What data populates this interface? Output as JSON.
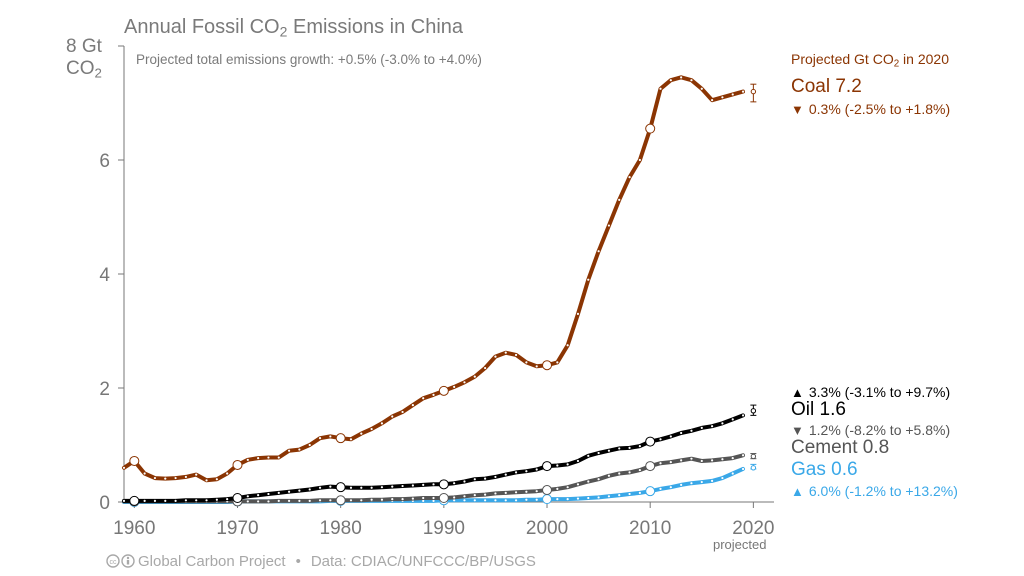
{
  "title": {
    "prefix": "Annual Fossil CO",
    "sub": "2",
    "suffix": " Emissions in China"
  },
  "subtitle": "Projected total emissions growth: +0.5% (-3.0% to +4.0%)",
  "y_unit": {
    "line1": "8 Gt",
    "line2_prefix": "CO",
    "line2_sub": "2"
  },
  "projection_header": {
    "prefix": "Projected Gt CO",
    "sub": "2",
    "suffix": " in 2020"
  },
  "labels": {
    "coal_name": "Coal 7.2",
    "coal_growth": "0.3% (-2.5% to +1.8%)",
    "oil_growth": "3.3% (-3.1% to +9.7%)",
    "oil_name": "Oil 1.6",
    "cement_growth": "1.2% (-8.2% to +5.8%)",
    "cement_name": "Cement 0.8",
    "gas_name": "Gas 0.6",
    "gas_growth": "6.0% (-1.2% to +13.2%)"
  },
  "x_axis_note": "projected",
  "footer": {
    "source": "Global Carbon Project",
    "separator": "•",
    "data": "Data: CDIAC/UNFCCC/BP/USGS"
  },
  "colors": {
    "coal": "#8b3503",
    "oil": "#000000",
    "cement": "#555555",
    "gas": "#3aa8e8",
    "axis": "#777777",
    "up": "#000000",
    "down": "#555555",
    "gas_up": "#3aa8e8"
  },
  "icons": {
    "license": "cc-by-icon",
    "up": "triangle-up-icon",
    "down": "triangle-down-icon"
  },
  "chart_data": {
    "type": "line",
    "title": "Annual Fossil CO2 Emissions in China",
    "ylabel": "Gt CO2",
    "xlim": [
      1959,
      2022
    ],
    "ylim": [
      0,
      8
    ],
    "x_ticks": [
      1960,
      1970,
      1980,
      1990,
      2000,
      2010,
      2020
    ],
    "y_ticks": [
      0,
      2,
      4,
      6,
      8
    ],
    "y_tick_labels": [
      "0",
      "2",
      "4",
      "6",
      ""
    ],
    "grid": false,
    "x": [
      1959,
      1960,
      1961,
      1962,
      1963,
      1964,
      1965,
      1966,
      1967,
      1968,
      1969,
      1970,
      1971,
      1972,
      1973,
      1974,
      1975,
      1976,
      1977,
      1978,
      1979,
      1980,
      1981,
      1982,
      1983,
      1984,
      1985,
      1986,
      1987,
      1988,
      1989,
      1990,
      1991,
      1992,
      1993,
      1994,
      1995,
      1996,
      1997,
      1998,
      1999,
      2000,
      2001,
      2002,
      2003,
      2004,
      2005,
      2006,
      2007,
      2008,
      2009,
      2010,
      2011,
      2012,
      2013,
      2014,
      2015,
      2016,
      2017,
      2018,
      2019
    ],
    "series": [
      {
        "name": "Coal",
        "values": [
          0.6,
          0.72,
          0.5,
          0.42,
          0.41,
          0.42,
          0.44,
          0.48,
          0.38,
          0.4,
          0.5,
          0.65,
          0.74,
          0.77,
          0.78,
          0.78,
          0.9,
          0.92,
          1.0,
          1.12,
          1.15,
          1.12,
          1.1,
          1.2,
          1.28,
          1.38,
          1.5,
          1.58,
          1.7,
          1.82,
          1.88,
          1.95,
          2.02,
          2.1,
          2.2,
          2.35,
          2.55,
          2.62,
          2.58,
          2.45,
          2.38,
          2.4,
          2.45,
          2.75,
          3.3,
          3.9,
          4.4,
          4.85,
          5.3,
          5.7,
          6.0,
          6.55,
          7.25,
          7.4,
          7.45,
          7.4,
          7.25,
          7.05,
          7.1,
          7.15,
          7.2
        ]
      },
      {
        "name": "Oil",
        "values": [
          0.02,
          0.02,
          0.02,
          0.02,
          0.02,
          0.02,
          0.03,
          0.03,
          0.03,
          0.04,
          0.05,
          0.07,
          0.1,
          0.12,
          0.14,
          0.16,
          0.18,
          0.2,
          0.22,
          0.25,
          0.27,
          0.26,
          0.25,
          0.25,
          0.25,
          0.26,
          0.27,
          0.28,
          0.29,
          0.3,
          0.31,
          0.31,
          0.33,
          0.36,
          0.4,
          0.41,
          0.44,
          0.48,
          0.52,
          0.54,
          0.57,
          0.63,
          0.64,
          0.66,
          0.72,
          0.81,
          0.86,
          0.9,
          0.94,
          0.95,
          0.98,
          1.06,
          1.1,
          1.15,
          1.21,
          1.25,
          1.3,
          1.33,
          1.38,
          1.45,
          1.52
        ]
      },
      {
        "name": "Cement",
        "values": [
          0.01,
          0.01,
          0.01,
          0.01,
          0.01,
          0.01,
          0.01,
          0.01,
          0.01,
          0.01,
          0.01,
          0.01,
          0.01,
          0.01,
          0.01,
          0.02,
          0.02,
          0.02,
          0.02,
          0.03,
          0.03,
          0.03,
          0.03,
          0.03,
          0.04,
          0.04,
          0.05,
          0.05,
          0.06,
          0.07,
          0.07,
          0.07,
          0.08,
          0.1,
          0.12,
          0.13,
          0.15,
          0.16,
          0.17,
          0.18,
          0.19,
          0.21,
          0.23,
          0.26,
          0.31,
          0.36,
          0.4,
          0.46,
          0.5,
          0.52,
          0.56,
          0.63,
          0.68,
          0.7,
          0.73,
          0.76,
          0.72,
          0.73,
          0.75,
          0.77,
          0.82
        ]
      },
      {
        "name": "Gas",
        "values": [
          0.0,
          0.0,
          0.0,
          0.0,
          0.0,
          0.0,
          0.0,
          0.0,
          0.0,
          0.0,
          0.0,
          0.01,
          0.01,
          0.01,
          0.01,
          0.01,
          0.01,
          0.01,
          0.01,
          0.01,
          0.02,
          0.02,
          0.02,
          0.02,
          0.02,
          0.02,
          0.02,
          0.02,
          0.02,
          0.02,
          0.02,
          0.03,
          0.03,
          0.03,
          0.03,
          0.03,
          0.03,
          0.03,
          0.03,
          0.04,
          0.04,
          0.05,
          0.05,
          0.05,
          0.06,
          0.07,
          0.08,
          0.1,
          0.12,
          0.14,
          0.16,
          0.19,
          0.23,
          0.26,
          0.3,
          0.33,
          0.35,
          0.37,
          0.42,
          0.5,
          0.58
        ]
      }
    ],
    "projection_2020": [
      {
        "name": "Coal",
        "value": 7.2,
        "range": [
          7.02,
          7.33
        ]
      },
      {
        "name": "Oil",
        "value": 1.6,
        "range": [
          1.52,
          1.7
        ]
      },
      {
        "name": "Cement",
        "value": 0.8,
        "range": [
          0.76,
          0.85
        ]
      },
      {
        "name": "Gas",
        "value": 0.6,
        "range": [
          0.58,
          0.66
        ]
      }
    ]
  }
}
